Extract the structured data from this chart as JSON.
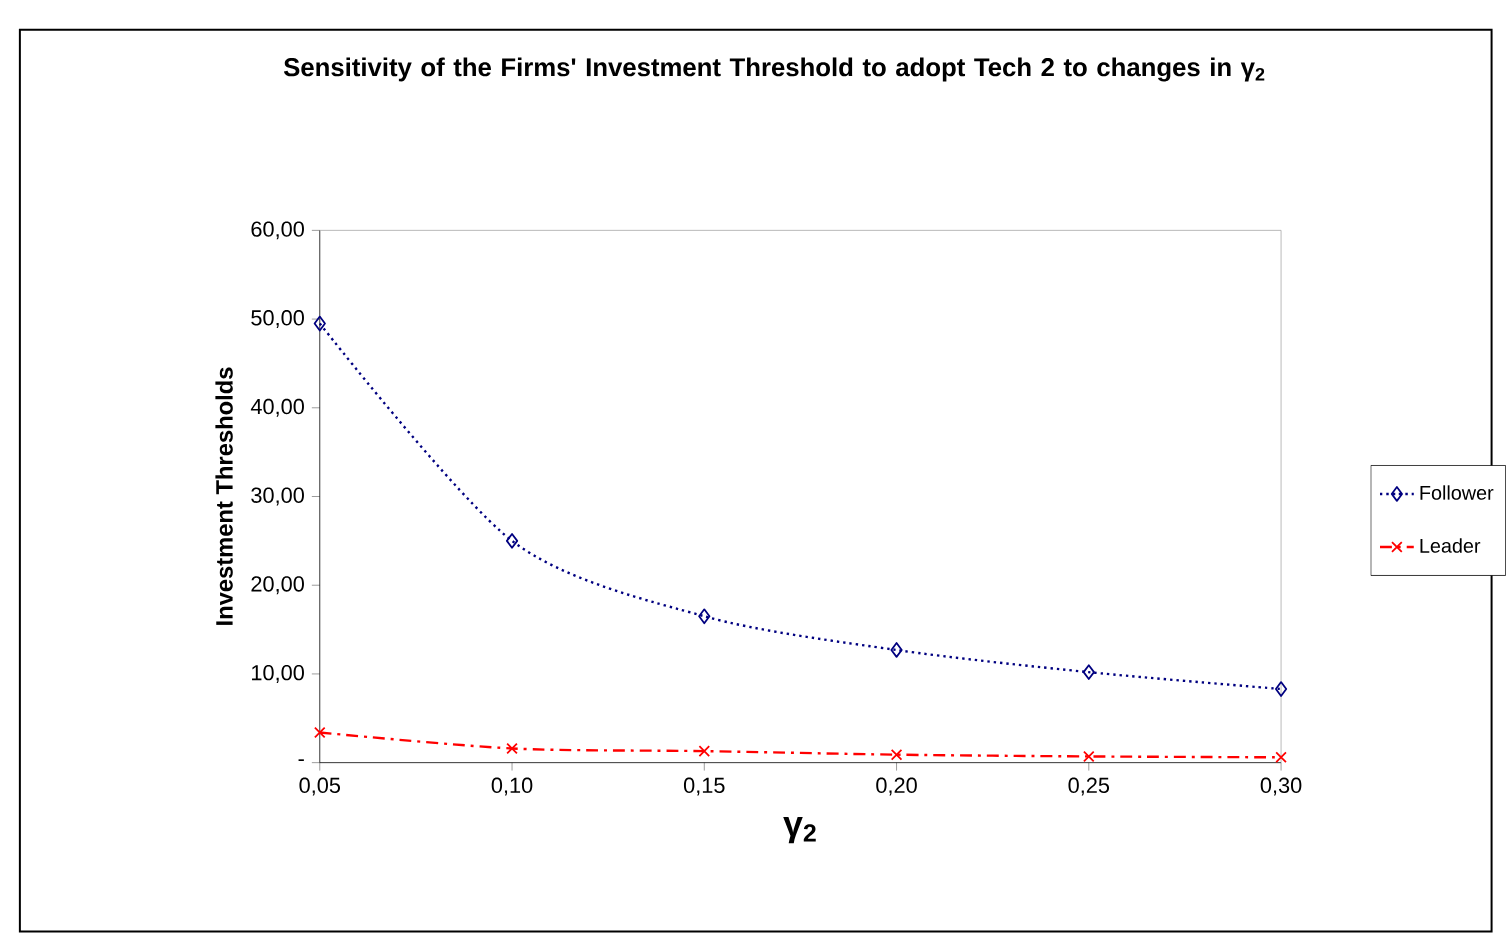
{
  "chart_data": {
    "type": "line",
    "title": "Sensitivity of the Firms' Investment Threshold to adopt Tech 2 to changes in γ$_{2}$",
    "xlabel": "γ$_{2}$",
    "ylabel": "Investment Thresholds",
    "x": [
      0.05,
      0.1,
      0.15,
      0.2,
      0.25,
      0.3
    ],
    "series": [
      {
        "name": "Follower",
        "color": "#000080",
        "values": [
          49.5,
          25.0,
          16.5,
          12.7,
          10.2,
          8.3
        ],
        "marker": "diamond",
        "line_style": "dotted"
      },
      {
        "name": "Leader",
        "color": "#ff0000",
        "values": [
          3.4,
          1.6,
          1.3,
          0.9,
          0.7,
          0.6
        ],
        "marker": "cross",
        "line_style": "dashed"
      }
    ],
    "xlim": [
      0.05,
      0.3
    ],
    "xticks": [
      {
        "value": 0.05,
        "label": "0,05"
      },
      {
        "value": 0.1,
        "label": "0,10"
      },
      {
        "value": 0.15,
        "label": "0,15"
      },
      {
        "value": 0.2,
        "label": "0,20"
      },
      {
        "value": 0.25,
        "label": "0,25"
      },
      {
        "value": 0.3,
        "label": "0,30"
      }
    ],
    "ylim": [
      0,
      60
    ],
    "yticks": [
      {
        "value": 0,
        "label": "-"
      },
      {
        "value": 10,
        "label": "10,00"
      },
      {
        "value": 20,
        "label": "20,00"
      },
      {
        "value": 30,
        "label": "30,00"
      },
      {
        "value": 40,
        "label": "40,00"
      },
      {
        "value": 50,
        "label": "50,00"
      },
      {
        "value": 60,
        "label": "60,00"
      }
    ],
    "legend": "right"
  }
}
